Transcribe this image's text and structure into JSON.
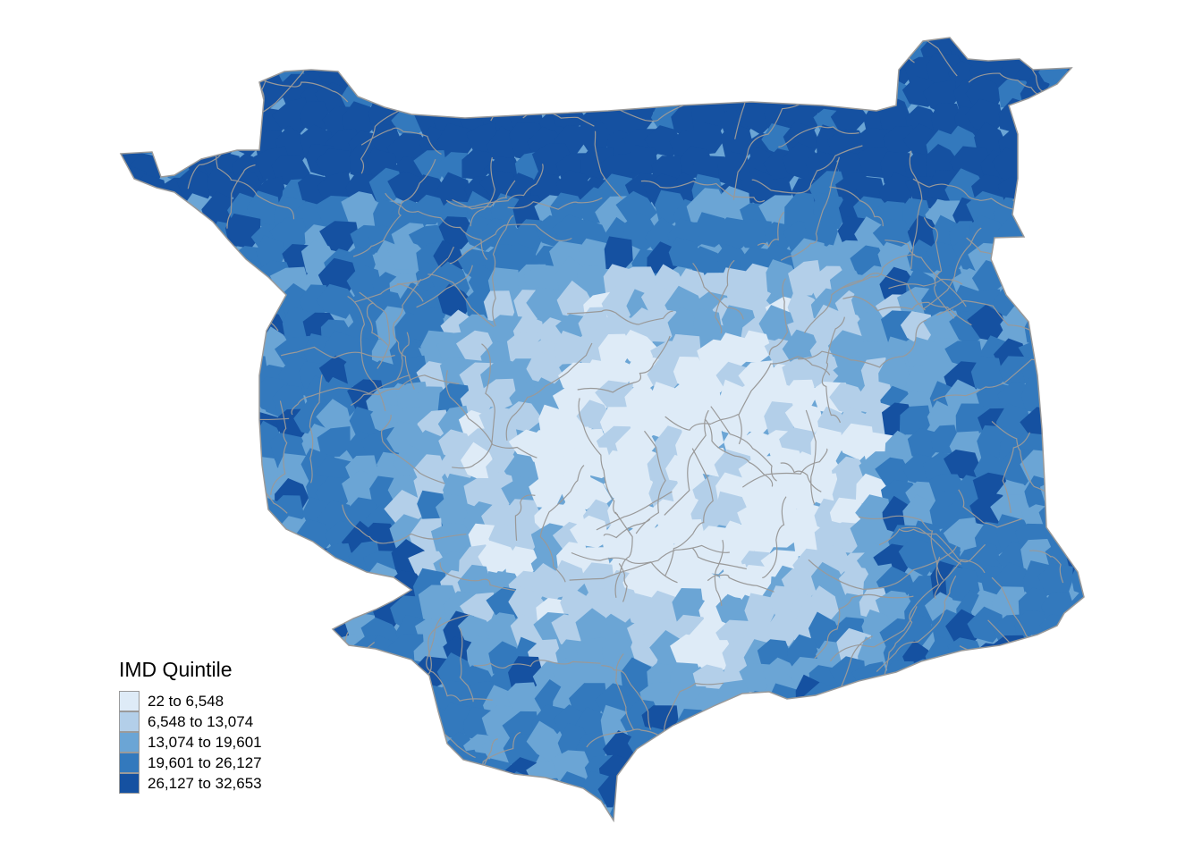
{
  "legend": {
    "title": "IMD Quintile",
    "classes": [
      {
        "label": "22 to 6,548",
        "min": 22,
        "max": 6548,
        "color": "#deebf7"
      },
      {
        "label": "6,548 to 13,074",
        "min": 6548,
        "max": 13074,
        "color": "#b3cfe9"
      },
      {
        "label": "13,074 to 19,601",
        "min": 13074,
        "max": 19601,
        "color": "#6ba5d5"
      },
      {
        "label": "19,601 to 26,127",
        "min": 19601,
        "max": 26127,
        "color": "#3379bd"
      },
      {
        "label": "26,127 to 32,653",
        "min": 26127,
        "max": 32653,
        "color": "#1551a1"
      }
    ]
  },
  "map": {
    "border_color": "#999999"
  }
}
